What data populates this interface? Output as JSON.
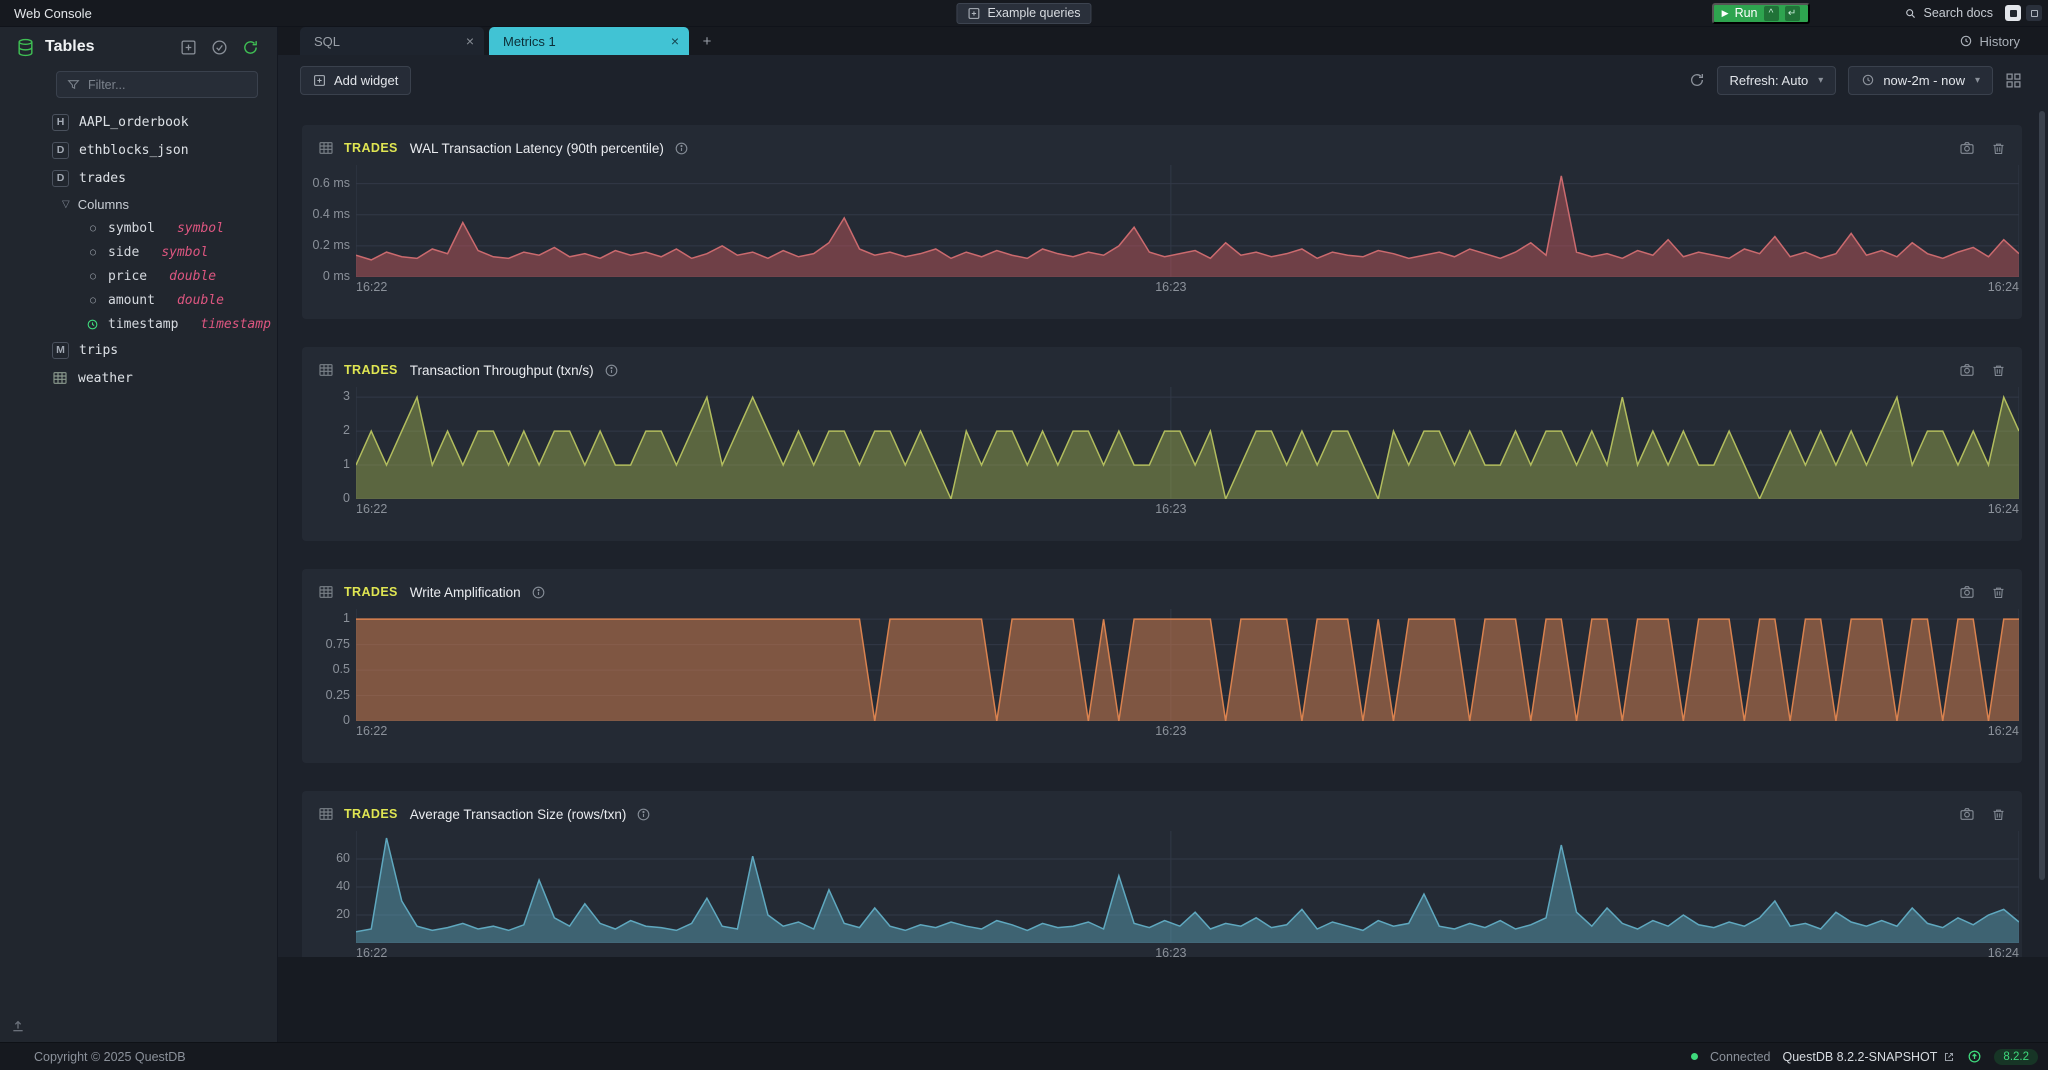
{
  "icons": {
    "close": "×",
    "plus": "+",
    "caret_down": "▾",
    "tree_caret": "▽",
    "play": "▶",
    "circle": "○",
    "ctrl": "^",
    "enter": "↵"
  },
  "topbar": {
    "app_title": "Web Console",
    "example_queries_label": "Example queries",
    "run_label": "Run",
    "search_docs_label": "Search docs"
  },
  "sidebar": {
    "title": "Tables",
    "filter_placeholder": "Filter...",
    "columns_label": "Columns",
    "tables": [
      {
        "badge": "H",
        "name": "AAPL_orderbook"
      },
      {
        "badge": "D",
        "name": "ethblocks_json"
      },
      {
        "badge": "D",
        "name": "trades"
      },
      {
        "badge": "M",
        "name": "trips"
      },
      {
        "name": "weather"
      }
    ],
    "trades_columns": [
      {
        "name": "symbol",
        "type": "symbol"
      },
      {
        "name": "side",
        "type": "symbol"
      },
      {
        "name": "price",
        "type": "double"
      },
      {
        "name": "amount",
        "type": "double"
      },
      {
        "name": "timestamp",
        "type": "timestamp"
      }
    ]
  },
  "tabs": {
    "sql_label": "SQL",
    "metrics_label": "Metrics 1",
    "history_label": "History"
  },
  "toolbar": {
    "add_widget_label": "Add widget",
    "refresh_mode_label": "Refresh: Auto",
    "time_range_label": "now-2m - now"
  },
  "footer": {
    "copyright": "Copyright © 2025 QuestDB",
    "connected_label": "Connected",
    "version_text": "QuestDB 8.2.2-SNAPSHOT",
    "version_badge": "8.2.2"
  },
  "colors": {
    "accent_cyan": "#41c3d4",
    "run_green": "#2ea44f",
    "table_label_yellow": "#dfe552",
    "type_pink": "#dd5680"
  },
  "chart_data": [
    {
      "type": "area",
      "table": "TRADES",
      "title": "WAL Transaction Latency (90th percentile)",
      "ylim": [
        0,
        0.72
      ],
      "yticks": [
        {
          "value": 0,
          "label": "0 ms"
        },
        {
          "value": 0.2,
          "label": "0.2 ms"
        },
        {
          "value": 0.4,
          "label": "0.4 ms"
        },
        {
          "value": 0.6,
          "label": "0.6 ms"
        }
      ],
      "xticks": [
        {
          "pos": 0,
          "label": "16:22"
        },
        {
          "pos": 0.49,
          "label": "16:23"
        },
        {
          "pos": 1,
          "label": "16:24"
        }
      ],
      "stroke": "#cb6a6e",
      "fill": "rgba(203,90,95,0.45)",
      "values": [
        0.14,
        0.11,
        0.16,
        0.13,
        0.12,
        0.18,
        0.15,
        0.35,
        0.17,
        0.13,
        0.12,
        0.16,
        0.14,
        0.19,
        0.13,
        0.15,
        0.12,
        0.17,
        0.14,
        0.16,
        0.13,
        0.18,
        0.12,
        0.15,
        0.2,
        0.14,
        0.16,
        0.12,
        0.17,
        0.13,
        0.15,
        0.22,
        0.38,
        0.18,
        0.14,
        0.16,
        0.13,
        0.15,
        0.18,
        0.12,
        0.16,
        0.13,
        0.17,
        0.14,
        0.12,
        0.18,
        0.15,
        0.13,
        0.16,
        0.14,
        0.2,
        0.32,
        0.16,
        0.13,
        0.15,
        0.17,
        0.12,
        0.22,
        0.14,
        0.16,
        0.13,
        0.15,
        0.18,
        0.12,
        0.16,
        0.14,
        0.13,
        0.17,
        0.15,
        0.12,
        0.14,
        0.16,
        0.13,
        0.18,
        0.15,
        0.12,
        0.16,
        0.22,
        0.14,
        0.65,
        0.16,
        0.13,
        0.15,
        0.12,
        0.17,
        0.14,
        0.24,
        0.13,
        0.16,
        0.14,
        0.12,
        0.18,
        0.15,
        0.26,
        0.13,
        0.16,
        0.12,
        0.15,
        0.28,
        0.14,
        0.17,
        0.13,
        0.22,
        0.15,
        0.12,
        0.16,
        0.19,
        0.13,
        0.24,
        0.15
      ]
    },
    {
      "type": "area",
      "table": "TRADES",
      "title": "Transaction Throughput (txn/s)",
      "ylim": [
        0,
        3.3
      ],
      "yticks": [
        {
          "value": 0,
          "label": "0"
        },
        {
          "value": 1,
          "label": "1"
        },
        {
          "value": 2,
          "label": "2"
        },
        {
          "value": 3,
          "label": "3"
        }
      ],
      "xticks": [
        {
          "pos": 0,
          "label": "16:22"
        },
        {
          "pos": 0.49,
          "label": "16:23"
        },
        {
          "pos": 1,
          "label": "16:24"
        }
      ],
      "stroke": "#b2bd5e",
      "fill": "rgba(170,185,80,0.42)",
      "values": [
        1,
        2,
        1,
        2,
        3,
        1,
        2,
        1,
        2,
        2,
        1,
        2,
        1,
        2,
        2,
        1,
        2,
        1,
        1,
        2,
        2,
        1,
        2,
        3,
        1,
        2,
        3,
        2,
        1,
        2,
        1,
        2,
        2,
        1,
        2,
        2,
        1,
        2,
        1,
        0,
        2,
        1,
        2,
        2,
        1,
        2,
        1,
        2,
        2,
        1,
        2,
        1,
        1,
        2,
        2,
        1,
        2,
        0,
        1,
        2,
        2,
        1,
        2,
        1,
        2,
        2,
        1,
        0,
        2,
        1,
        2,
        2,
        1,
        2,
        1,
        1,
        2,
        1,
        2,
        2,
        1,
        2,
        1,
        3,
        1,
        2,
        1,
        2,
        1,
        1,
        2,
        1,
        0,
        1,
        2,
        1,
        2,
        1,
        2,
        1,
        2,
        3,
        1,
        2,
        2,
        1,
        2,
        1,
        3,
        2
      ]
    },
    {
      "type": "area",
      "table": "TRADES",
      "title": "Write Amplification",
      "ylim": [
        0,
        1.1
      ],
      "yticks": [
        {
          "value": 0,
          "label": "0"
        },
        {
          "value": 0.25,
          "label": "0.25"
        },
        {
          "value": 0.5,
          "label": "0.5"
        },
        {
          "value": 0.75,
          "label": "0.75"
        },
        {
          "value": 1,
          "label": "1"
        }
      ],
      "xticks": [
        {
          "pos": 0,
          "label": "16:22"
        },
        {
          "pos": 0.49,
          "label": "16:23"
        },
        {
          "pos": 1,
          "label": "16:24"
        }
      ],
      "stroke": "#d9824f",
      "fill": "rgba(217,130,79,0.5)",
      "values": [
        1,
        1,
        1,
        1,
        1,
        1,
        1,
        1,
        1,
        1,
        1,
        1,
        1,
        1,
        1,
        1,
        1,
        1,
        1,
        1,
        1,
        1,
        1,
        1,
        1,
        1,
        1,
        1,
        1,
        1,
        1,
        1,
        1,
        1,
        0,
        1,
        1,
        1,
        1,
        1,
        1,
        1,
        0,
        1,
        1,
        1,
        1,
        1,
        0,
        1,
        0,
        1,
        1,
        1,
        1,
        1,
        1,
        0,
        1,
        1,
        1,
        1,
        0,
        1,
        1,
        1,
        0,
        1,
        0,
        1,
        1,
        1,
        1,
        0,
        1,
        1,
        1,
        0,
        1,
        1,
        0,
        1,
        1,
        0,
        1,
        1,
        1,
        0,
        1,
        1,
        1,
        0,
        1,
        1,
        0,
        1,
        1,
        0,
        1,
        1,
        1,
        0,
        1,
        1,
        0,
        1,
        1,
        0,
        1,
        1
      ]
    },
    {
      "type": "area",
      "table": "TRADES",
      "title": "Average Transaction Size (rows/txn)",
      "ylim": [
        0,
        80
      ],
      "yticks": [
        {
          "value": 20,
          "label": "20"
        },
        {
          "value": 40,
          "label": "40"
        },
        {
          "value": 60,
          "label": "60"
        }
      ],
      "xticks": [
        {
          "pos": 0,
          "label": "16:22"
        },
        {
          "pos": 0.49,
          "label": "16:23"
        },
        {
          "pos": 1,
          "label": "16:24"
        }
      ],
      "stroke": "#5fa8bf",
      "fill": "rgba(95,168,191,0.45)",
      "values": [
        8,
        10,
        75,
        30,
        12,
        9,
        11,
        14,
        10,
        12,
        9,
        13,
        45,
        18,
        12,
        28,
        14,
        10,
        16,
        12,
        11,
        9,
        14,
        32,
        12,
        10,
        62,
        20,
        12,
        15,
        10,
        38,
        14,
        11,
        25,
        12,
        9,
        13,
        11,
        15,
        12,
        10,
        16,
        13,
        9,
        14,
        11,
        12,
        15,
        10,
        48,
        14,
        11,
        16,
        12,
        22,
        10,
        14,
        12,
        18,
        11,
        13,
        24,
        10,
        15,
        12,
        9,
        16,
        12,
        14,
        35,
        12,
        10,
        14,
        11,
        16,
        10,
        13,
        18,
        70,
        22,
        12,
        25,
        14,
        10,
        16,
        12,
        20,
        13,
        11,
        15,
        12,
        18,
        30,
        12,
        14,
        10,
        22,
        15,
        12,
        16,
        12,
        25,
        14,
        11,
        18,
        13,
        20,
        24,
        15
      ]
    }
  ]
}
